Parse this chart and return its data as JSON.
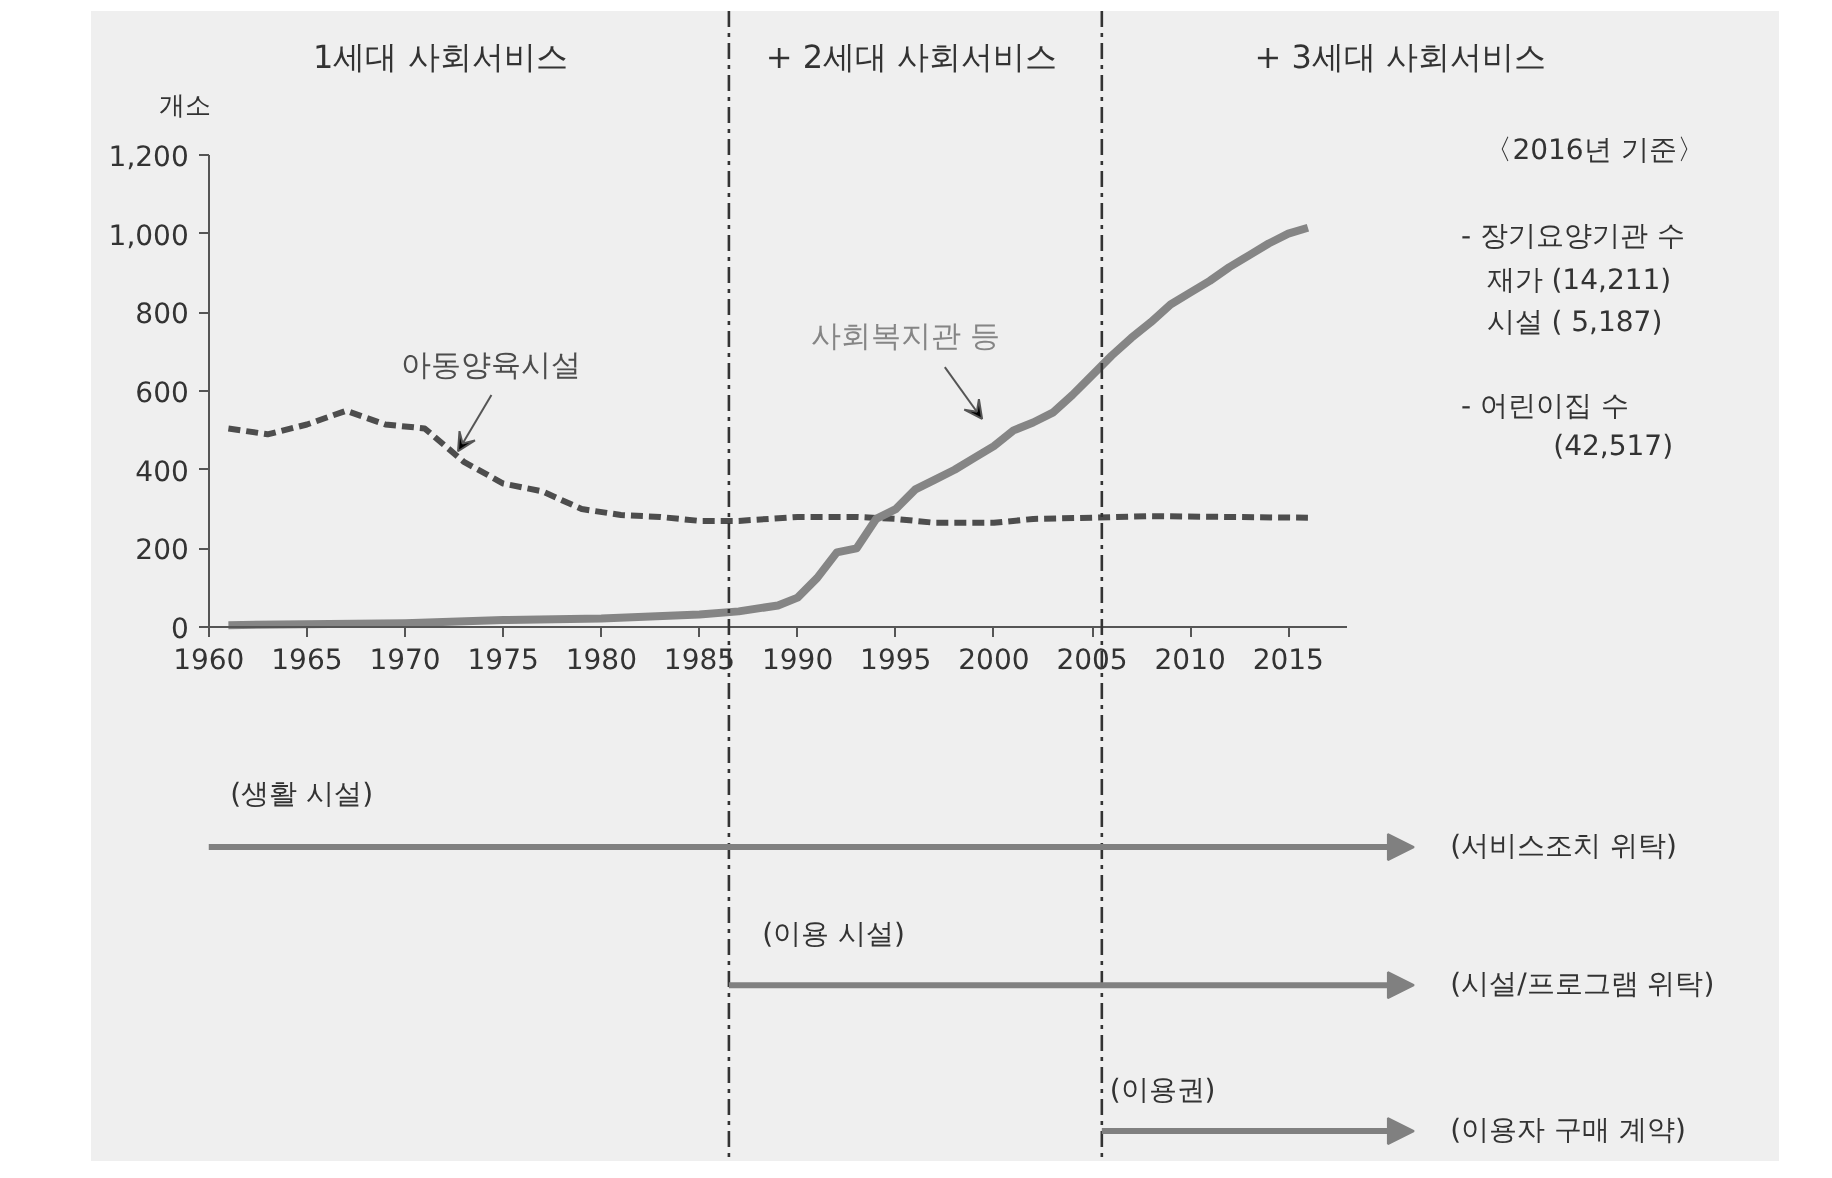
{
  "chart_data": {
    "type": "line",
    "ylabel": "개소",
    "xlim": [
      1960,
      2018
    ],
    "xticks": [
      1960,
      1965,
      1970,
      1975,
      1980,
      1985,
      1990,
      1995,
      2000,
      2005,
      2010,
      2015
    ],
    "ylim": [
      0,
      1200
    ],
    "yticks": [
      0,
      {
        "value": 200,
        "label": "200"
      },
      {
        "value": 400,
        "label": "400"
      },
      {
        "value": 600,
        "label": "600"
      },
      {
        "value": 800,
        "label": "800"
      },
      {
        "value": 1000,
        "label": "1,000"
      },
      {
        "value": 1200,
        "label": "1,200"
      }
    ],
    "grid": false,
    "series": [
      {
        "name": "아동양육시설",
        "color": "#4d4d4d",
        "line_style": "dashed",
        "x": [
          1961,
          1963,
          1965,
          1967,
          1969,
          1971,
          1973,
          1975,
          1977,
          1979,
          1981,
          1983,
          1985,
          1987,
          1990,
          1993,
          1995,
          1997,
          2000,
          2002,
          2005,
          2008,
          2012,
          2016
        ],
        "values": [
          505,
          490,
          515,
          550,
          515,
          505,
          420,
          365,
          345,
          300,
          285,
          280,
          270,
          270,
          280,
          280,
          275,
          265,
          265,
          275,
          278,
          282,
          280,
          278
        ]
      },
      {
        "name": "사회복지관 등",
        "color": "#858585",
        "line_style": "solid",
        "x": [
          1961,
          1970,
          1975,
          1980,
          1985,
          1987,
          1989,
          1990,
          1991,
          1992,
          1993,
          1994,
          1995,
          1996,
          1997,
          1998,
          1999,
          2000,
          2001,
          2002,
          2003,
          2004,
          2005,
          2006,
          2007,
          2008,
          2009,
          2010,
          2011,
          2012,
          2013,
          2014,
          2015,
          2016
        ],
        "values": [
          5,
          10,
          18,
          22,
          32,
          40,
          55,
          75,
          125,
          190,
          200,
          275,
          300,
          350,
          375,
          400,
          430,
          460,
          500,
          520,
          545,
          590,
          640,
          690,
          735,
          775,
          820,
          850,
          880,
          915,
          945,
          975,
          1000,
          1015
        ]
      }
    ],
    "ref_lines": [
      {
        "axis": "x",
        "value": 1986.5,
        "color": "#333333",
        "line_style": "dashdot"
      },
      {
        "axis": "x",
        "value": 2005.5,
        "color": "#333333",
        "line_style": "dashdot"
      }
    ],
    "annotations": [
      "1세대 사회서비스",
      "+ 2세대 사회서비스",
      "+ 3세대 사회서비스",
      "〈2016년 기준〉",
      "- 장기요양기관 수",
      "재가 (14,211)",
      "시설 (  5,187)",
      "- 어린이집 수",
      "(42,517)",
      "(생활 시설)",
      "(서비스조치 위탁)",
      "(이용 시설)",
      "(시설/프로그램 위탁)",
      "(이용권)",
      "(이용자 구매 계약)"
    ]
  }
}
